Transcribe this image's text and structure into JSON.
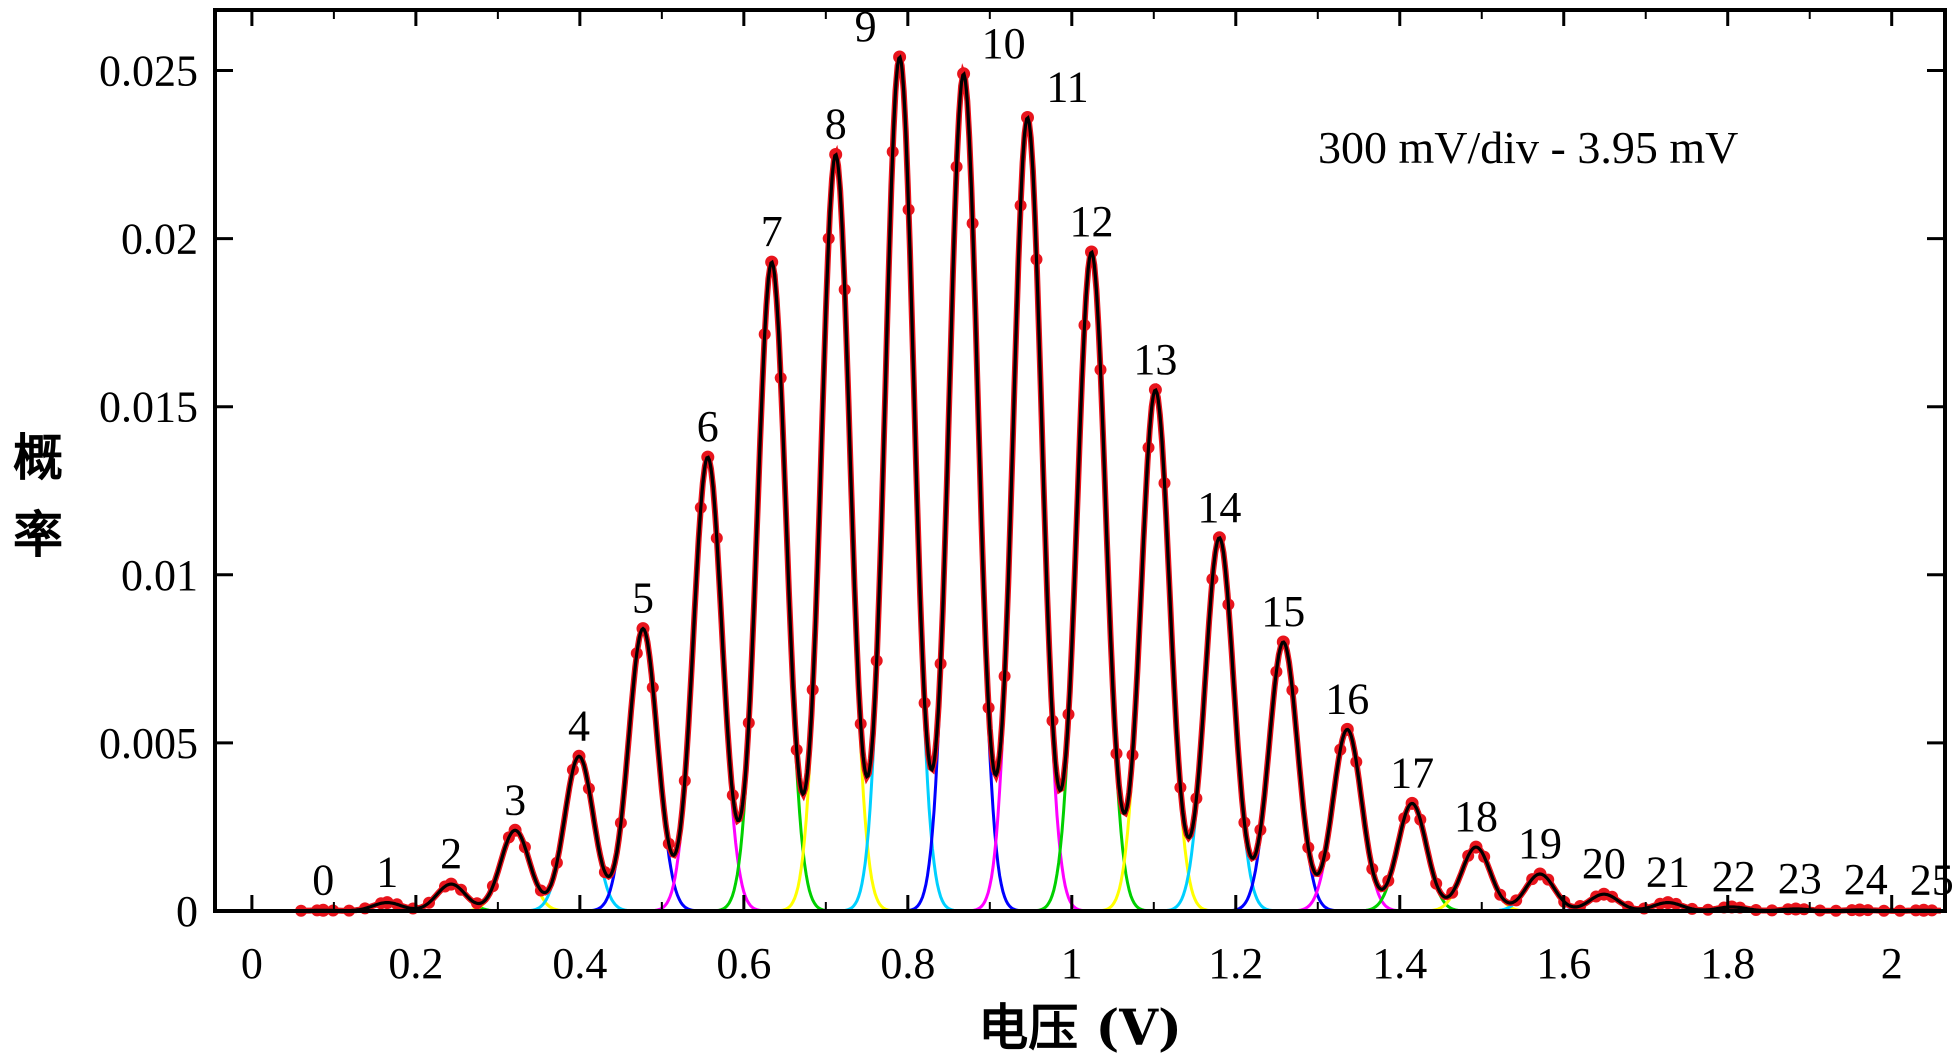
{
  "chart_data": {
    "type": "line",
    "title": "",
    "xlabel": "电压 (V)",
    "ylabel": "概率",
    "ylabel_chars": [
      "概",
      "率"
    ],
    "annotation": "300 mV/div - 3.95 mV",
    "xlim": [
      -0.045,
      2.065
    ],
    "ylim": [
      0,
      0.0268
    ],
    "xticks": [
      0,
      0.2,
      0.4,
      0.6,
      0.8,
      1.0,
      1.2,
      1.4,
      1.6,
      1.8,
      2.0
    ],
    "xtick_labels": [
      "0",
      "0.2",
      "0.4",
      "0.6",
      "0.8",
      "1",
      "1.2",
      "1.4",
      "1.6",
      "1.8",
      "2"
    ],
    "yticks": [
      0,
      0.005,
      0.01,
      0.015,
      0.02,
      0.025
    ],
    "ytick_labels": [
      "0",
      "0.005",
      "0.01",
      "0.015",
      "0.02",
      "0.025"
    ],
    "peak_sigma": 0.0175,
    "data_range": [
      0.06,
      2.06
    ],
    "peaks": [
      {
        "n": 0,
        "label": "0",
        "x": 0.087,
        "y": 2e-05
      },
      {
        "n": 1,
        "label": "1",
        "x": 0.165,
        "y": 0.00025
      },
      {
        "n": 2,
        "label": "2",
        "x": 0.243,
        "y": 0.0008
      },
      {
        "n": 3,
        "label": "3",
        "x": 0.321,
        "y": 0.0024
      },
      {
        "n": 4,
        "label": "4",
        "x": 0.399,
        "y": 0.0046
      },
      {
        "n": 5,
        "label": "5",
        "x": 0.477,
        "y": 0.0084
      },
      {
        "n": 6,
        "label": "6",
        "x": 0.556,
        "y": 0.0135
      },
      {
        "n": 7,
        "label": "7",
        "x": 0.634,
        "y": 0.0193
      },
      {
        "n": 8,
        "label": "8",
        "x": 0.712,
        "y": 0.0225
      },
      {
        "n": 9,
        "label": "9",
        "x": 0.79,
        "y": 0.0254
      },
      {
        "n": 10,
        "label": "10",
        "x": 0.868,
        "y": 0.0249
      },
      {
        "n": 11,
        "label": "11",
        "x": 0.946,
        "y": 0.0236
      },
      {
        "n": 12,
        "label": "12",
        "x": 1.024,
        "y": 0.0196
      },
      {
        "n": 13,
        "label": "13",
        "x": 1.102,
        "y": 0.0155
      },
      {
        "n": 14,
        "label": "14",
        "x": 1.18,
        "y": 0.0111
      },
      {
        "n": 15,
        "label": "15",
        "x": 1.258,
        "y": 0.008
      },
      {
        "n": 16,
        "label": "16",
        "x": 1.336,
        "y": 0.0054
      },
      {
        "n": 17,
        "label": "17",
        "x": 1.415,
        "y": 0.0032
      },
      {
        "n": 18,
        "label": "18",
        "x": 1.493,
        "y": 0.0019
      },
      {
        "n": 19,
        "label": "19",
        "x": 1.571,
        "y": 0.0011
      },
      {
        "n": 20,
        "label": "20",
        "x": 1.649,
        "y": 0.0005
      },
      {
        "n": 21,
        "label": "21",
        "x": 1.727,
        "y": 0.00025
      },
      {
        "n": 22,
        "label": "22",
        "x": 1.805,
        "y": 0.00012
      },
      {
        "n": 23,
        "label": "23",
        "x": 1.883,
        "y": 6e-05
      },
      {
        "n": 24,
        "label": "24",
        "x": 1.961,
        "y": 3e-05
      },
      {
        "n": 25,
        "label": "25",
        "x": 2.039,
        "y": 2e-05
      }
    ],
    "series": [
      {
        "name": "measured",
        "style": "points",
        "color": "#e8141c"
      },
      {
        "name": "fit",
        "style": "line",
        "color": "#000000"
      },
      {
        "name": "components",
        "style": "lines",
        "colors": [
          "#0000ff",
          "#ff00ff",
          "#00d000",
          "#ffff00",
          "#00d0ff"
        ]
      }
    ]
  }
}
